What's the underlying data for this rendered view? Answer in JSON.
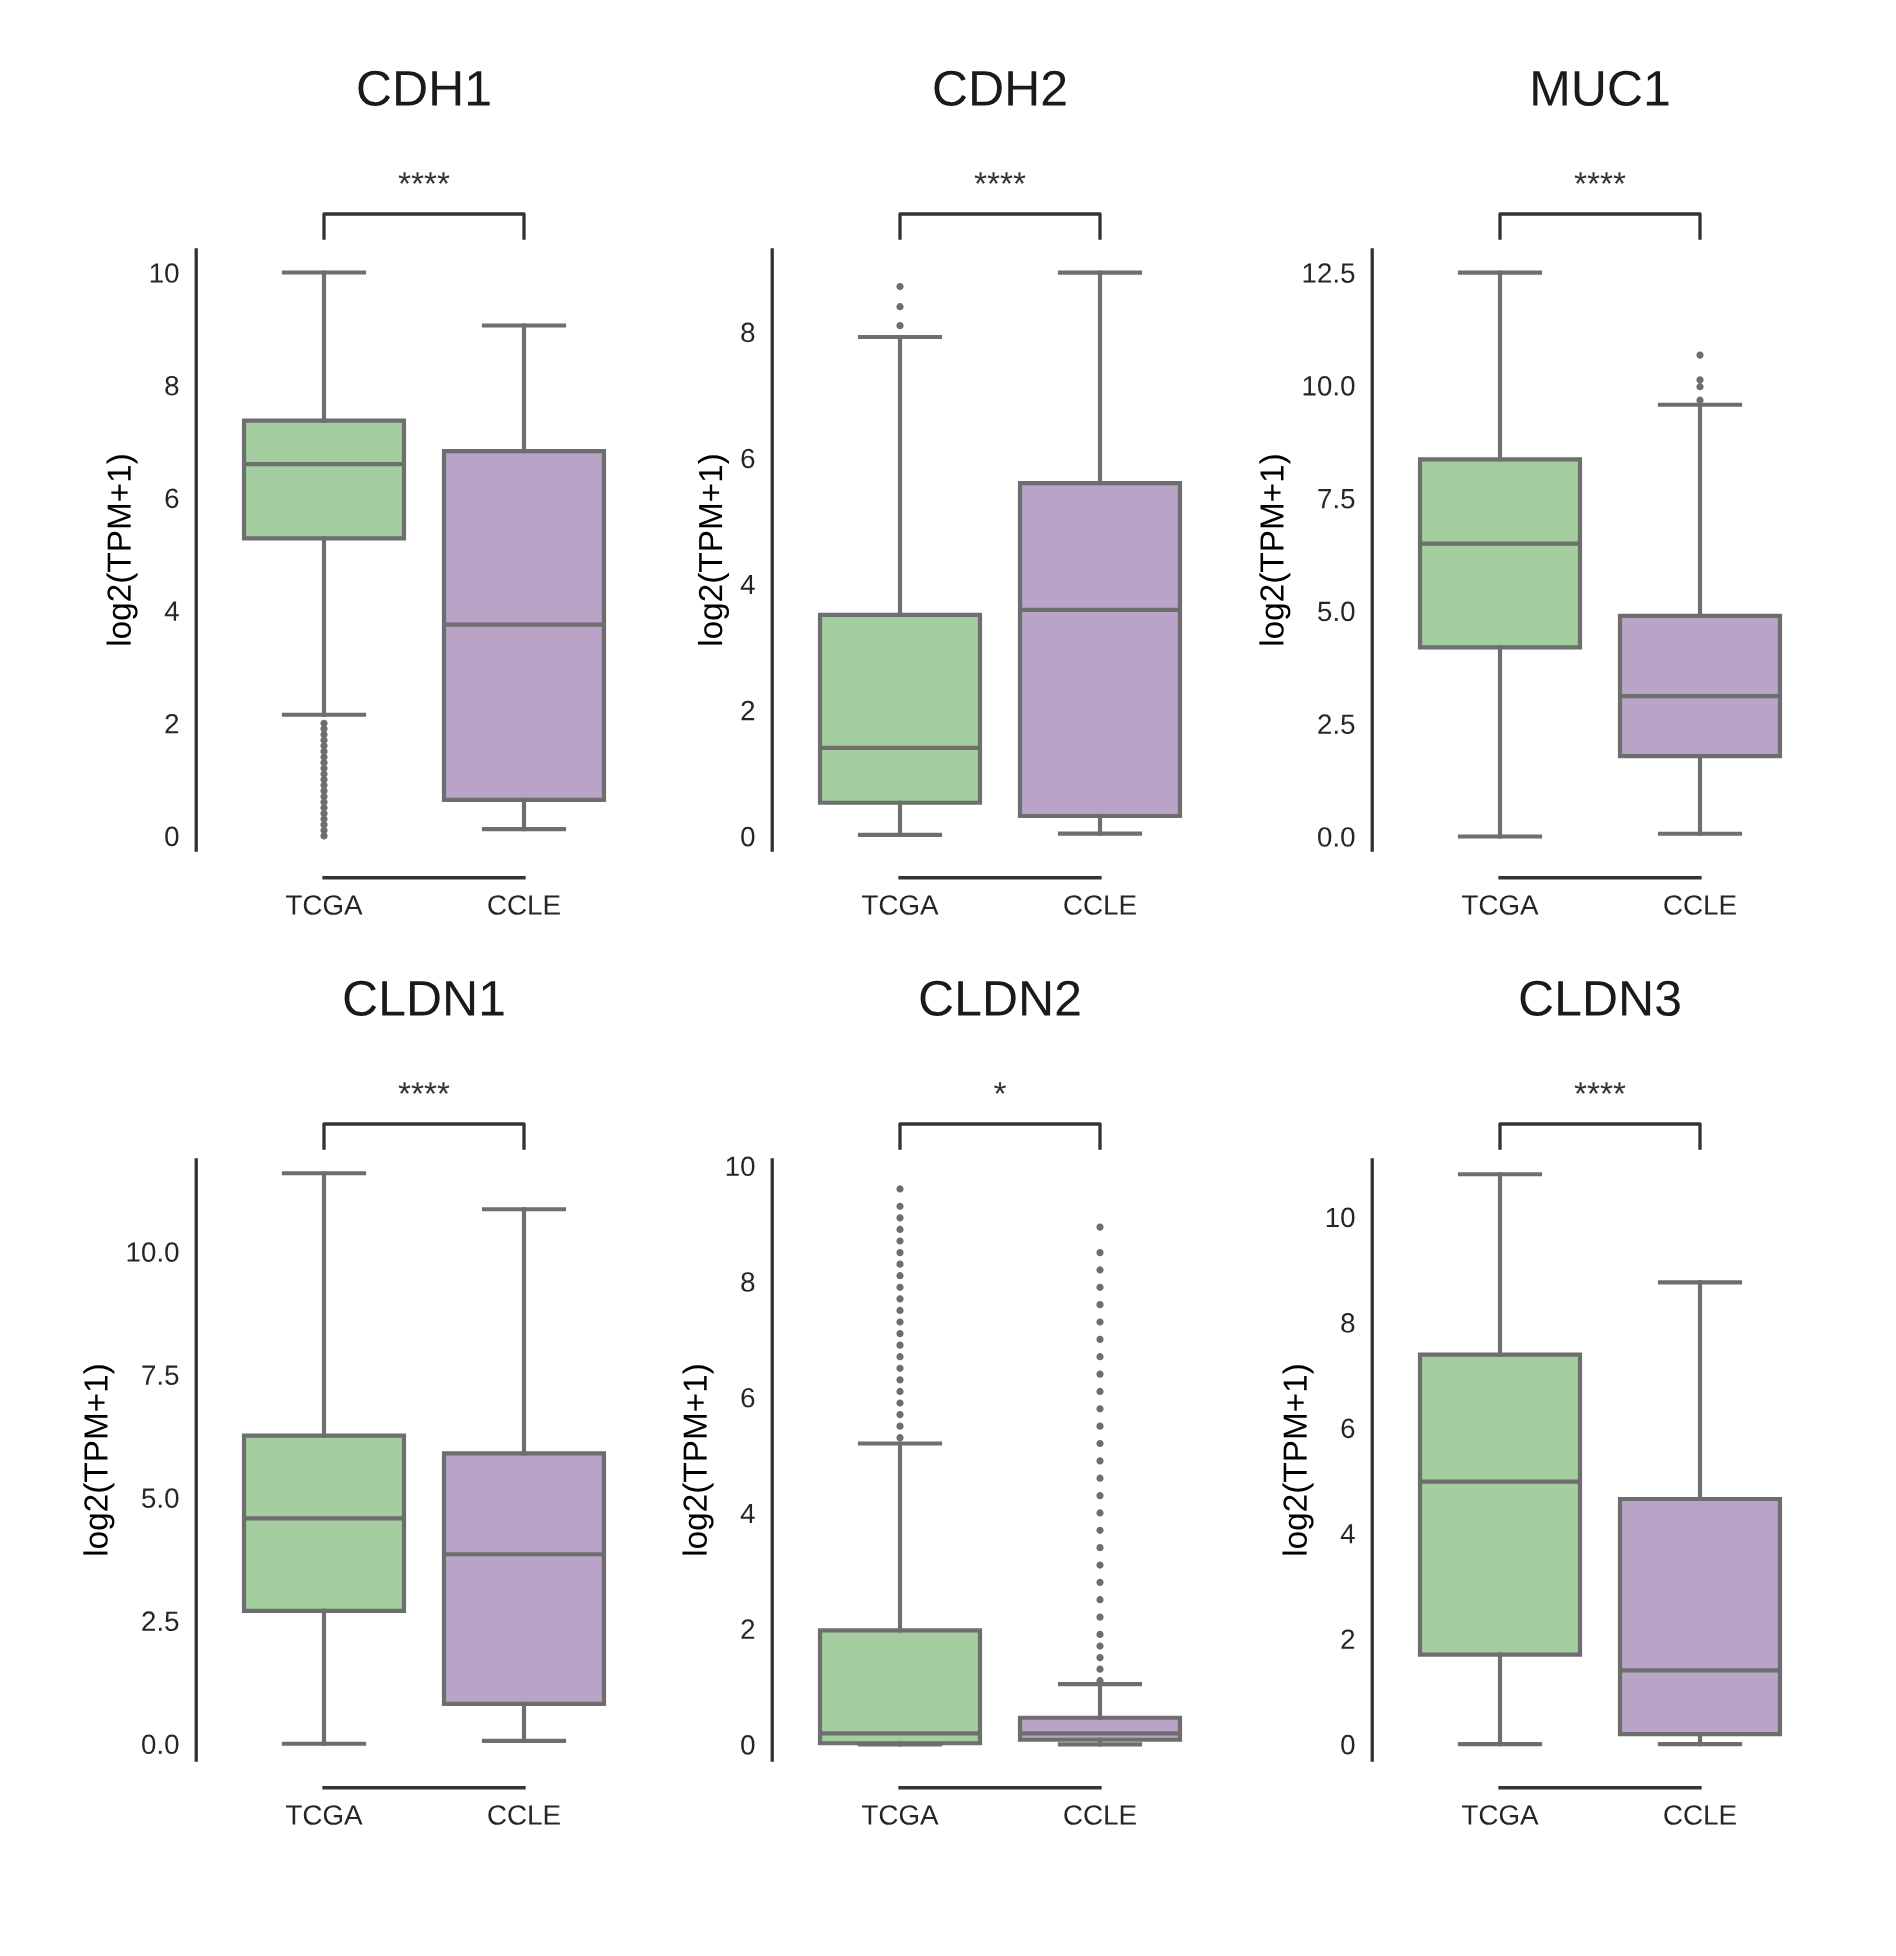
{
  "chart_data": [
    {
      "type": "box",
      "title": "CDH1",
      "ylabel": "log2(TPM+1)",
      "categories": [
        "TCGA",
        "CCLE"
      ],
      "colors": [
        "#a3cd9e",
        "#b9a3c6"
      ],
      "ylim": [
        -0.25,
        10.4
      ],
      "yticks": [
        0,
        2,
        4,
        6,
        8,
        10
      ],
      "annotations": [
        "****"
      ],
      "boxes": [
        {
          "low": 2.15,
          "q1": 5.28,
          "median": 6.6,
          "q3": 7.37,
          "high": 10.0,
          "outliers": [
            0.0,
            0.1,
            0.2,
            0.3,
            0.4,
            0.5,
            0.6,
            0.7,
            0.8,
            0.9,
            1.0,
            1.1,
            1.2,
            1.3,
            1.4,
            1.5,
            1.6,
            1.7,
            1.8,
            1.9,
            2.0
          ]
        },
        {
          "low": 0.12,
          "q1": 0.64,
          "median": 3.75,
          "q3": 6.83,
          "high": 9.06
        }
      ]
    },
    {
      "type": "box",
      "title": "CDH2",
      "ylabel": "log2(TPM+1)",
      "categories": [
        "TCGA",
        "CCLE"
      ],
      "colors": [
        "#a3cd9e",
        "#b9a3c6"
      ],
      "ylim": [
        -0.22,
        9.3
      ],
      "yticks": [
        0,
        2,
        4,
        6,
        8
      ],
      "annotations": [
        "****"
      ],
      "boxes": [
        {
          "low": 0.02,
          "q1": 0.53,
          "median": 1.4,
          "q3": 3.51,
          "high": 7.92,
          "outliers": [
            8.1,
            8.4,
            8.72
          ]
        },
        {
          "low": 0.04,
          "q1": 0.32,
          "median": 3.59,
          "q3": 5.6,
          "high": 8.94
        }
      ]
    },
    {
      "type": "box",
      "title": "MUC1",
      "ylabel": "log2(TPM+1)",
      "categories": [
        "TCGA",
        "CCLE"
      ],
      "colors": [
        "#a3cd9e",
        "#b9a3c6"
      ],
      "ylim": [
        -0.3,
        13.0
      ],
      "yticks": [
        {
          "value": 0,
          "label": "0.0"
        },
        2.5,
        {
          "value": 5,
          "label": "5.0"
        },
        7.5,
        {
          "value": 10,
          "label": "10.0"
        },
        12.5
      ],
      "annotations": [
        "****"
      ],
      "boxes": [
        {
          "low": 0.0,
          "q1": 4.19,
          "median": 6.49,
          "q3": 8.36,
          "high": 12.5
        },
        {
          "low": 0.06,
          "q1": 1.78,
          "median": 3.11,
          "q3": 4.89,
          "high": 9.57,
          "outliers": [
            9.67,
            9.97,
            10.12,
            10.67
          ]
        }
      ]
    },
    {
      "type": "box",
      "title": "CLDN1",
      "ylabel": "log2(TPM+1)",
      "categories": [
        "TCGA",
        "CCLE"
      ],
      "colors": [
        "#a3cd9e",
        "#b9a3c6"
      ],
      "ylim": [
        -0.33,
        11.86
      ],
      "yticks": [
        {
          "value": 0,
          "label": "0.0"
        },
        2.5,
        {
          "value": 5,
          "label": "5.0"
        },
        7.5,
        {
          "value": 10,
          "label": "10.0"
        }
      ],
      "annotations": [
        "****"
      ],
      "boxes": [
        {
          "low": 0.0,
          "q1": 2.7,
          "median": 4.58,
          "q3": 6.26,
          "high": 11.59
        },
        {
          "low": 0.06,
          "q1": 0.81,
          "median": 3.85,
          "q3": 5.9,
          "high": 10.86
        }
      ]
    },
    {
      "type": "box",
      "title": "CLDN2",
      "ylabel": "log2(TPM+1)",
      "categories": [
        "TCGA",
        "CCLE"
      ],
      "colors": [
        "#a3cd9e",
        "#b9a3c6"
      ],
      "ylim": [
        -0.27,
        10.1
      ],
      "yticks": [
        0,
        2,
        4,
        6,
        8,
        10
      ],
      "annotations": [
        "*"
      ],
      "boxes": [
        {
          "low": 0.0,
          "q1": 0.02,
          "median": 0.19,
          "q3": 1.97,
          "high": 5.2,
          "outliers": [
            5.3,
            5.5,
            5.7,
            5.9,
            6.1,
            6.3,
            6.5,
            6.7,
            6.9,
            7.1,
            7.3,
            7.5,
            7.7,
            7.9,
            8.1,
            8.3,
            8.5,
            8.7,
            8.9,
            9.1,
            9.3,
            9.6
          ]
        },
        {
          "low": 0.0,
          "q1": 0.08,
          "median": 0.19,
          "q3": 0.46,
          "high": 1.04,
          "outliers": [
            1.1,
            1.3,
            1.5,
            1.7,
            1.9,
            2.2,
            2.5,
            2.8,
            3.1,
            3.4,
            3.7,
            4.0,
            4.3,
            4.6,
            4.9,
            5.2,
            5.5,
            5.8,
            6.1,
            6.4,
            6.7,
            7.0,
            7.3,
            7.6,
            7.9,
            8.2,
            8.5,
            8.94
          ]
        }
      ]
    },
    {
      "type": "box",
      "title": "CLDN3",
      "ylabel": "log2(TPM+1)",
      "categories": [
        "TCGA",
        "CCLE"
      ],
      "colors": [
        "#a3cd9e",
        "#b9a3c6"
      ],
      "ylim": [
        -0.3,
        11.08
      ],
      "yticks": [
        0,
        2,
        4,
        6,
        8,
        10
      ],
      "annotations": [
        "****"
      ],
      "boxes": [
        {
          "low": 0.0,
          "q1": 1.7,
          "median": 4.98,
          "q3": 7.39,
          "high": 10.81
        },
        {
          "low": 0.0,
          "q1": 0.19,
          "median": 1.4,
          "q3": 4.65,
          "high": 8.76
        }
      ]
    }
  ]
}
